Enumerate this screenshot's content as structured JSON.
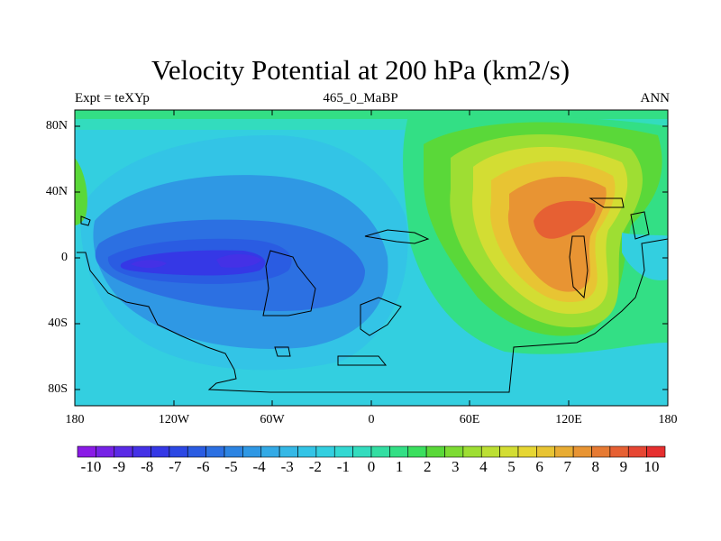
{
  "map": {
    "title": "Velocity Potential at 200 hPa (km2/s)",
    "subtitle_left": "Expt = teXYp",
    "subtitle_center": "465_0_MaBP",
    "subtitle_right": "ANN",
    "lat_ticks": [
      "80N",
      "40N",
      "0",
      "40S",
      "80S"
    ],
    "lon_ticks": [
      "180",
      "120W",
      "60W",
      "0",
      "60E",
      "120E",
      "180"
    ]
  },
  "colorbar": {
    "labels": [
      "-10",
      "-9",
      "-8",
      "-7",
      "-6",
      "-5",
      "-4",
      "-3",
      "-2",
      "-1",
      "0",
      "1",
      "2",
      "3",
      "4",
      "5",
      "6",
      "7",
      "8",
      "9",
      "10"
    ],
    "colors": [
      "#8a1be6",
      "#7622e6",
      "#5a2ae6",
      "#4431e6",
      "#3538e6",
      "#2c48e4",
      "#2a5ce2",
      "#2c70e2",
      "#2c84e2",
      "#2f98e4",
      "#33aae6",
      "#35b8e6",
      "#33c4e6",
      "#33cfe0",
      "#33d8d2",
      "#33dcbe",
      "#33dea2",
      "#33df85",
      "#3bdf5e",
      "#5ad839",
      "#7ddb33",
      "#9ede33",
      "#bcdf33",
      "#d3dd33",
      "#e6d633",
      "#e8c433",
      "#e8ac33",
      "#e89433",
      "#e67a33",
      "#e66033",
      "#e64633",
      "#e62f2f"
    ]
  }
}
